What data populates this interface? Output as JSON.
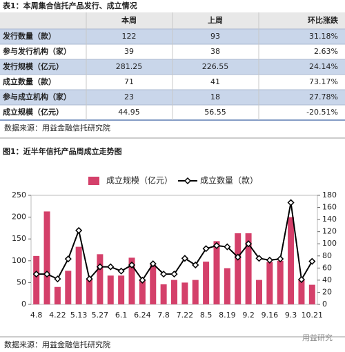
{
  "table": {
    "title": "表1：本周集合信托产品发行、成立情况",
    "header": [
      "本周",
      "上周",
      "环比涨跌"
    ],
    "rows": [
      [
        "发行数量（款）",
        "122",
        "93",
        "31.18%"
      ],
      [
        "参与发行机构（家）",
        "39",
        "38",
        "2.63%"
      ],
      [
        "发行规模（亿元）",
        "281.25",
        "226.55",
        "24.14%"
      ],
      [
        "成立数量（款）",
        "71",
        "41",
        "73.17%"
      ],
      [
        "参与成立机构（家）",
        "23",
        "18",
        "27.78%"
      ],
      [
        "成立规模（亿元）",
        "44.95",
        "56.55",
        "-20.51%"
      ]
    ]
  },
  "table_source": "数据来源：用益金融信托研究院",
  "chart_data": {
    "type": "bar-line",
    "title": "图1：近半年信托产品周成立走势图",
    "categories": [
      "4.8",
      null,
      "4.22",
      null,
      "5.13",
      null,
      "5.27",
      null,
      "6.1",
      null,
      "6.24",
      null,
      "7.8",
      null,
      "7.22",
      null,
      "8.5",
      null,
      "8.19",
      null,
      "9.2",
      null,
      "9.16",
      null,
      "9.3",
      null,
      "10.21"
    ],
    "series": [
      {
        "name": "成立规模（亿元）",
        "color": "#d4406a",
        "type": "bar",
        "values": [
          111,
          213,
          40,
          77,
          132,
          58,
          115,
          66,
          66,
          107,
          55,
          90,
          46,
          56,
          50,
          56,
          98,
          145,
          83,
          163,
          163,
          56,
          97,
          100,
          200,
          56.55,
          44.95
        ]
      },
      {
        "name": "成立数量（款）",
        "color": "#000000",
        "type": "line",
        "axis": "y2",
        "values": [
          50,
          50,
          42,
          75,
          122,
          42,
          62,
          62,
          55,
          65,
          40,
          67,
          50,
          50,
          76,
          65,
          92,
          97,
          95,
          78,
          100,
          76,
          73,
          75,
          168,
          41,
          71
        ]
      }
    ],
    "ylim": [
      0,
      250
    ],
    "yticks": [
      0,
      50,
      100,
      150,
      200,
      250
    ],
    "y2lim": [
      0,
      180
    ],
    "y2ticks": [
      0,
      20,
      40,
      60,
      80,
      100,
      120,
      140,
      160,
      180
    ],
    "legend": "top"
  },
  "chart_source": "数据来源：用益金融信托研究院",
  "watermark": "用益研究"
}
